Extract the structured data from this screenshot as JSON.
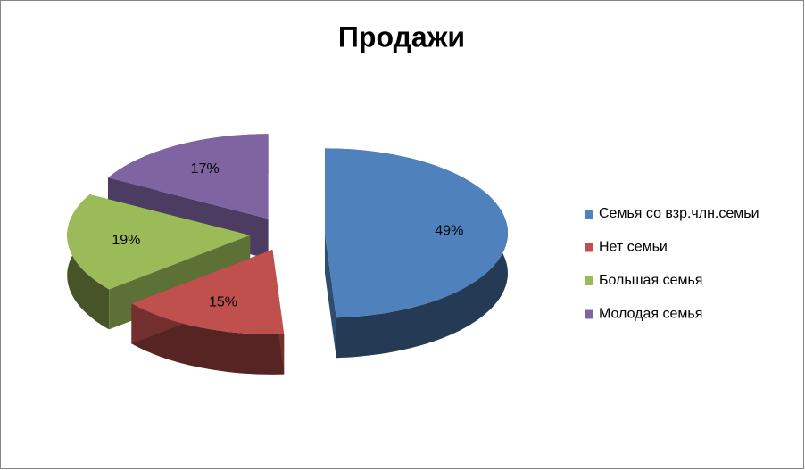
{
  "chart_data": {
    "type": "pie3d",
    "title": "Продажи",
    "categories": [
      "Семья со взр.члн.семьи",
      "Нет семьи",
      "Большая семья",
      "Молодая семья"
    ],
    "values": [
      49,
      15,
      19,
      17
    ],
    "value_labels": [
      "49%",
      "15%",
      "19%",
      "17%"
    ],
    "colors": [
      "#4f81bd",
      "#c0504d",
      "#9bbb59",
      "#8064a2"
    ],
    "legend": "right"
  }
}
